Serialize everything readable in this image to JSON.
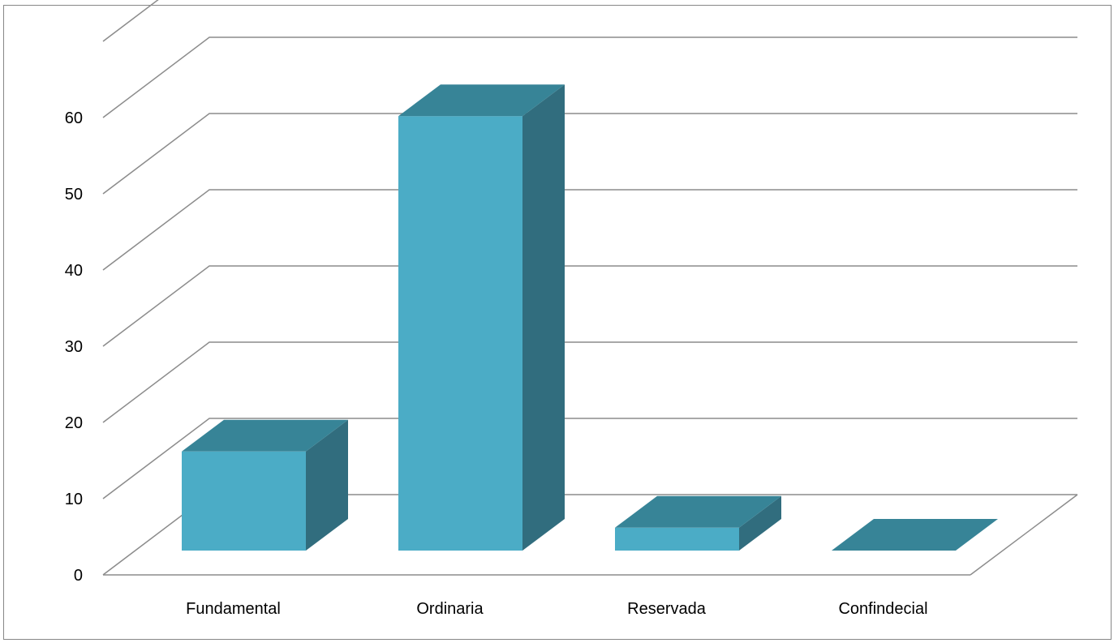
{
  "chart_data": {
    "type": "bar",
    "style": "3d-column",
    "categories": [
      "Fundamental",
      "Ordinaria",
      "Reservada",
      "Confindecial"
    ],
    "values": [
      13,
      57,
      3,
      0
    ],
    "yticks": [
      "0",
      "10",
      "20",
      "30",
      "40",
      "50",
      "60"
    ],
    "ylim": [
      0,
      70
    ],
    "grid": true,
    "legend": "none",
    "colors": {
      "bar_front": "#4bacc6",
      "bar_top": "#378497",
      "bar_side": "#316d7e",
      "grid": "#8c8c8c"
    }
  }
}
